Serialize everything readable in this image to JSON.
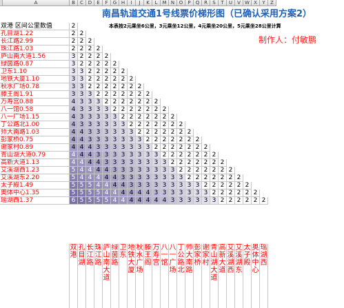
{
  "sheet": {
    "column_headers": [
      "A",
      "B",
      "C",
      "D",
      "E",
      "F",
      "G",
      "H",
      "I",
      "J",
      "K",
      "L",
      "M",
      "N",
      "O",
      "P",
      "Q",
      "R",
      "S",
      "T",
      "U",
      "V",
      "W",
      "X",
      "Y",
      "Z"
    ],
    "title": "南昌轨道交通1号线票价梯形图（已确认采用方案2）",
    "header_label": "双港 区间公里数值",
    "header_first_value": "2",
    "note": "本表按2元乘坐6公里，3元乘坐12公里，4元乘坐20公里，5元乘坐28公里计算",
    "author": "制作人：付敏鹏",
    "stations": [
      {
        "label": "孔目湖1.22",
        "values": [
          2,
          2
        ]
      },
      {
        "label": "长江路2.99",
        "values": [
          2,
          2,
          2
        ]
      },
      {
        "label": "珠江路1.03",
        "values": [
          2,
          2,
          2,
          2
        ]
      },
      {
        "label": "庐山南大道1.56",
        "values": [
          3,
          2,
          2,
          2,
          2
        ]
      },
      {
        "label": "绿茵路0.87",
        "values": [
          3,
          2,
          2,
          2,
          2,
          2
        ]
      },
      {
        "label": "卫东1.10",
        "values": [
          3,
          3,
          2,
          2,
          2,
          2,
          2
        ]
      },
      {
        "label": "地铁大厦1.10",
        "values": [
          3,
          3,
          2,
          2,
          2,
          2,
          2,
          2
        ]
      },
      {
        "label": "秋水广场0.78",
        "values": [
          3,
          3,
          2,
          2,
          2,
          2,
          2,
          2,
          2
        ]
      },
      {
        "label": "滕王阁1.91",
        "values": [
          3,
          3,
          3,
          2,
          2,
          2,
          2,
          2,
          2,
          2
        ]
      },
      {
        "label": "万寿宫0.88",
        "values": [
          4,
          3,
          3,
          3,
          2,
          2,
          2,
          2,
          2,
          2,
          2
        ]
      },
      {
        "label": "八一馆0.58",
        "values": [
          4,
          3,
          3,
          3,
          3,
          2,
          2,
          2,
          2,
          2,
          2,
          2
        ]
      },
      {
        "label": "八一广场1.15",
        "values": [
          4,
          3,
          3,
          3,
          3,
          3,
          2,
          2,
          2,
          2,
          2,
          2,
          2
        ]
      },
      {
        "label": "丁公路北1.00",
        "values": [
          4,
          3,
          3,
          3,
          3,
          3,
          3,
          2,
          2,
          2,
          2,
          2,
          2,
          2
        ]
      },
      {
        "label": "师大南路1.03",
        "values": [
          4,
          4,
          3,
          3,
          3,
          3,
          3,
          3,
          2,
          2,
          2,
          2,
          2,
          2,
          2
        ]
      },
      {
        "label": "彭家桥0.75",
        "values": [
          4,
          4,
          3,
          3,
          3,
          3,
          3,
          3,
          3,
          2,
          2,
          2,
          2,
          2,
          2,
          2
        ]
      },
      {
        "label": "谢家村0.89",
        "values": [
          4,
          4,
          4,
          3,
          3,
          3,
          3,
          3,
          3,
          3,
          2,
          2,
          2,
          2,
          2,
          2,
          2
        ]
      },
      {
        "label": "青山湖大道0.79",
        "values": [
          4,
          4,
          4,
          3,
          3,
          3,
          3,
          3,
          3,
          3,
          3,
          2,
          2,
          2,
          2,
          2,
          2,
          2
        ]
      },
      {
        "label": "高新大道1.13",
        "values": [
          4,
          4,
          4,
          4,
          3,
          3,
          3,
          3,
          3,
          3,
          3,
          3,
          2,
          2,
          2,
          2,
          2,
          2,
          2
        ]
      },
      {
        "label": "艾溪湖西1.23",
        "values": [
          5,
          4,
          4,
          4,
          4,
          3,
          3,
          3,
          3,
          3,
          3,
          3,
          3,
          2,
          2,
          2,
          2,
          2,
          2,
          2
        ]
      },
      {
        "label": "艾溪湖东2.20",
        "values": [
          5,
          4,
          4,
          4,
          4,
          4,
          3,
          3,
          3,
          3,
          3,
          3,
          3,
          3,
          2,
          2,
          2,
          2,
          2,
          2,
          2
        ]
      },
      {
        "label": "太子殿1.49",
        "values": [
          5,
          5,
          5,
          4,
          4,
          4,
          4,
          3,
          3,
          3,
          3,
          3,
          3,
          3,
          3,
          3,
          2,
          2,
          2,
          2,
          2,
          2
        ]
      },
      {
        "label": "奥体中心1.35",
        "values": [
          5,
          5,
          5,
          5,
          4,
          4,
          4,
          4,
          4,
          4,
          3,
          3,
          3,
          3,
          3,
          3,
          3,
          2,
          2,
          2,
          2,
          2,
          2
        ]
      },
      {
        "label": "瑶湖西1.37",
        "values": [
          6,
          5,
          5,
          5,
          5,
          4,
          4,
          4,
          4,
          4,
          4,
          4,
          3,
          3,
          3,
          3,
          3,
          3,
          2,
          2,
          2,
          2,
          2,
          2
        ]
      }
    ],
    "bottom_labels": [
      "双港",
      "孔目湖",
      "长江路",
      "珠江路",
      "庐山南大道",
      "绿茵路",
      "卫东",
      "地铁大厦",
      "秋水广场",
      "滕王阁",
      "万寿宫",
      "八一馆",
      "八一广场",
      "丁公路北",
      "师大南路",
      "彭家桥",
      "谢家村",
      "青山湖大道",
      "高新大道",
      "艾溪湖西",
      "艾溪湖东",
      "太子殿",
      "奥体中心",
      "瑶湖西"
    ],
    "colors": {
      "title": "#1b5fb6",
      "label_red": "#ff0000",
      "grid": "#c6c6c6",
      "shade_dark": "#5d4f93",
      "shade_light": "#f0eef8"
    }
  }
}
